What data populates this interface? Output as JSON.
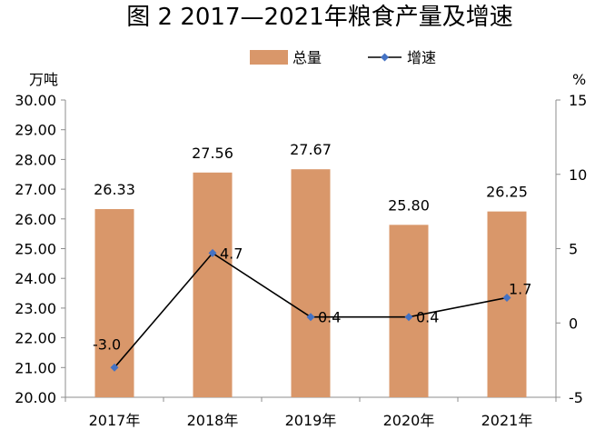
{
  "chart_data": {
    "type": "bar+line",
    "title": "图 2 2017—2021年粮食产量及增速",
    "categories": [
      "2017年",
      "2018年",
      "2019年",
      "2020年",
      "2021年"
    ],
    "y_left": {
      "unit_label": "万吨",
      "range": [
        20.0,
        30.0
      ],
      "ticks": [
        "20.00",
        "21.00",
        "22.00",
        "23.00",
        "24.00",
        "25.00",
        "26.00",
        "27.00",
        "28.00",
        "29.00",
        "30.00"
      ]
    },
    "y_right": {
      "unit_label": "%",
      "range": [
        -5,
        15
      ],
      "ticks": [
        "-5",
        "0",
        "5",
        "10",
        "15"
      ]
    },
    "series": [
      {
        "name": "总量",
        "type": "bar",
        "axis": "left",
        "color": "#D9976A",
        "values": [
          26.33,
          27.56,
          27.67,
          25.8,
          26.25
        ],
        "labels": [
          "26.33",
          "27.56",
          "27.67",
          "25.80",
          "26.25"
        ]
      },
      {
        "name": "增速",
        "type": "line",
        "axis": "right",
        "color": "#000000",
        "marker_color": "#4472C4",
        "values": [
          -3.0,
          4.7,
          0.4,
          0.4,
          1.7
        ],
        "labels": [
          "-3.0",
          "4.7",
          "0.4",
          "0.4",
          "1.7"
        ]
      }
    ],
    "legend_position": "top-right",
    "grid": false
  }
}
